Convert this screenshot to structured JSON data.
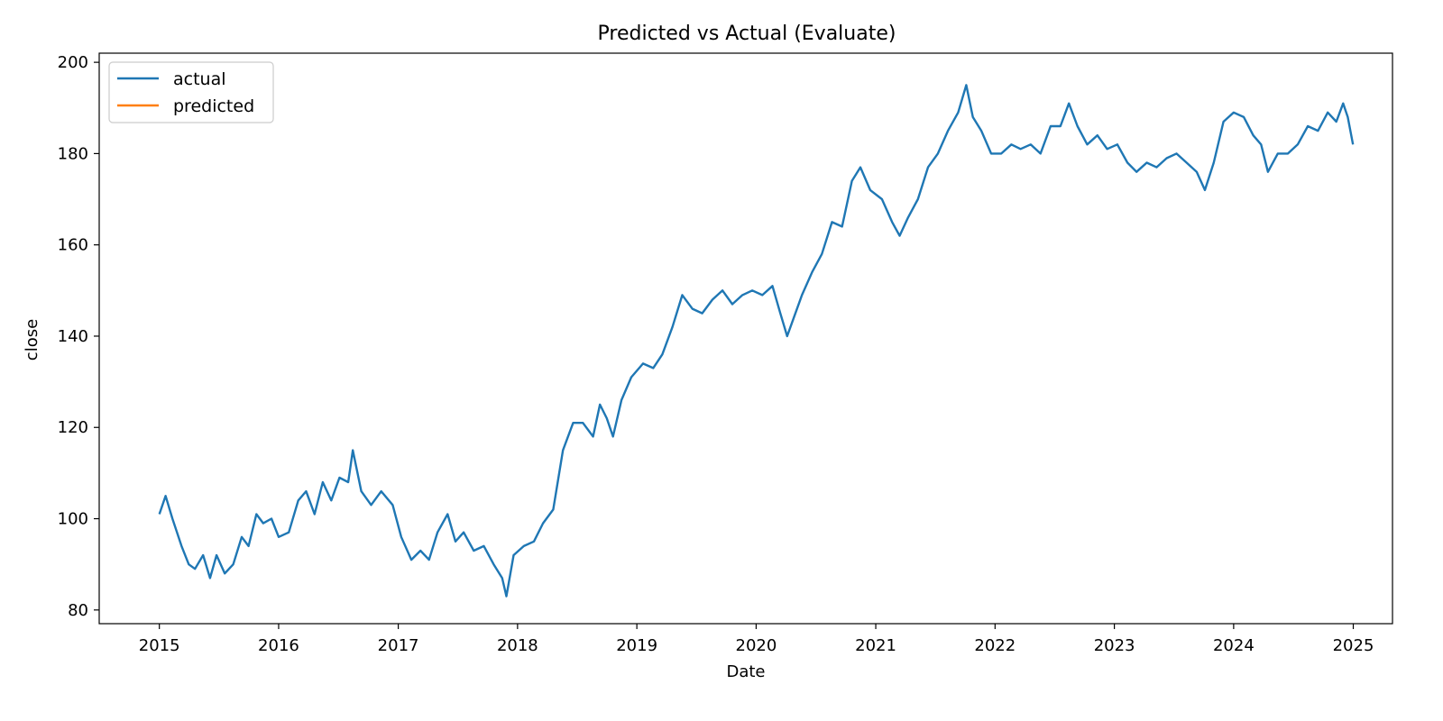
{
  "chart_data": {
    "type": "line",
    "title": "Predicted vs Actual (Evaluate)",
    "xlabel": "Date",
    "ylabel": "close",
    "xlim": [
      "2014-07-01",
      "2025-05-01"
    ],
    "ylim": [
      77,
      202
    ],
    "x_ticks": [
      "2015",
      "2016",
      "2017",
      "2018",
      "2019",
      "2020",
      "2021",
      "2022",
      "2023",
      "2024",
      "2025"
    ],
    "y_ticks": [
      80,
      100,
      120,
      140,
      160,
      180,
      200
    ],
    "grid": false,
    "legend_position": "top-left",
    "series": [
      {
        "name": "actual",
        "color": "#1f77b4",
        "points": [
          [
            "2015-01-01",
            101
          ],
          [
            "2015-01-20",
            105
          ],
          [
            "2015-02-10",
            100
          ],
          [
            "2015-03-10",
            94
          ],
          [
            "2015-04-01",
            90
          ],
          [
            "2015-04-20",
            89
          ],
          [
            "2015-05-15",
            92
          ],
          [
            "2015-06-05",
            87
          ],
          [
            "2015-06-25",
            92
          ],
          [
            "2015-07-20",
            88
          ],
          [
            "2015-08-15",
            90
          ],
          [
            "2015-09-10",
            96
          ],
          [
            "2015-10-01",
            94
          ],
          [
            "2015-10-25",
            101
          ],
          [
            "2015-11-15",
            99
          ],
          [
            "2015-12-10",
            100
          ],
          [
            "2016-01-01",
            96
          ],
          [
            "2016-02-01",
            97
          ],
          [
            "2016-03-01",
            104
          ],
          [
            "2016-03-25",
            106
          ],
          [
            "2016-04-20",
            101
          ],
          [
            "2016-05-15",
            108
          ],
          [
            "2016-06-10",
            104
          ],
          [
            "2016-07-05",
            109
          ],
          [
            "2016-08-01",
            108
          ],
          [
            "2016-08-15",
            115
          ],
          [
            "2016-09-10",
            106
          ],
          [
            "2016-10-10",
            103
          ],
          [
            "2016-11-10",
            106
          ],
          [
            "2016-12-15",
            103
          ],
          [
            "2017-01-10",
            96
          ],
          [
            "2017-02-10",
            91
          ],
          [
            "2017-03-10",
            93
          ],
          [
            "2017-04-05",
            91
          ],
          [
            "2017-05-01",
            97
          ],
          [
            "2017-06-01",
            101
          ],
          [
            "2017-06-25",
            95
          ],
          [
            "2017-07-20",
            97
          ],
          [
            "2017-08-20",
            93
          ],
          [
            "2017-09-20",
            94
          ],
          [
            "2017-10-20",
            90
          ],
          [
            "2017-11-15",
            87
          ],
          [
            "2017-11-28",
            83
          ],
          [
            "2017-12-20",
            92
          ],
          [
            "2018-01-20",
            94
          ],
          [
            "2018-02-20",
            95
          ],
          [
            "2018-03-20",
            99
          ],
          [
            "2018-04-20",
            102
          ],
          [
            "2018-05-20",
            115
          ],
          [
            "2018-06-20",
            121
          ],
          [
            "2018-07-20",
            121
          ],
          [
            "2018-08-20",
            118
          ],
          [
            "2018-09-10",
            125
          ],
          [
            "2018-10-01",
            122
          ],
          [
            "2018-10-20",
            118
          ],
          [
            "2018-11-15",
            126
          ],
          [
            "2018-12-15",
            131
          ],
          [
            "2019-01-20",
            134
          ],
          [
            "2019-02-20",
            133
          ],
          [
            "2019-03-20",
            136
          ],
          [
            "2019-04-20",
            142
          ],
          [
            "2019-05-20",
            149
          ],
          [
            "2019-06-20",
            146
          ],
          [
            "2019-07-20",
            145
          ],
          [
            "2019-08-20",
            148
          ],
          [
            "2019-09-20",
            150
          ],
          [
            "2019-10-20",
            147
          ],
          [
            "2019-11-20",
            149
          ],
          [
            "2019-12-20",
            150
          ],
          [
            "2020-01-20",
            149
          ],
          [
            "2020-02-20",
            151
          ],
          [
            "2020-03-15",
            145
          ],
          [
            "2020-04-05",
            140
          ],
          [
            "2020-04-25",
            144
          ],
          [
            "2020-05-20",
            149
          ],
          [
            "2020-06-20",
            154
          ],
          [
            "2020-07-20",
            158
          ],
          [
            "2020-08-20",
            165
          ],
          [
            "2020-09-20",
            164
          ],
          [
            "2020-10-20",
            174
          ],
          [
            "2020-11-15",
            177
          ],
          [
            "2020-12-15",
            172
          ],
          [
            "2021-01-20",
            170
          ],
          [
            "2021-02-20",
            165
          ],
          [
            "2021-03-15",
            162
          ],
          [
            "2021-04-10",
            166
          ],
          [
            "2021-05-10",
            170
          ],
          [
            "2021-06-10",
            177
          ],
          [
            "2021-07-10",
            180
          ],
          [
            "2021-08-10",
            185
          ],
          [
            "2021-09-10",
            189
          ],
          [
            "2021-10-05",
            195
          ],
          [
            "2021-10-25",
            188
          ],
          [
            "2021-11-20",
            185
          ],
          [
            "2021-12-20",
            180
          ],
          [
            "2022-01-20",
            180
          ],
          [
            "2022-02-20",
            182
          ],
          [
            "2022-03-20",
            181
          ],
          [
            "2022-04-20",
            182
          ],
          [
            "2022-05-20",
            180
          ],
          [
            "2022-06-20",
            186
          ],
          [
            "2022-07-20",
            186
          ],
          [
            "2022-08-15",
            191
          ],
          [
            "2022-09-10",
            186
          ],
          [
            "2022-10-10",
            182
          ],
          [
            "2022-11-10",
            184
          ],
          [
            "2022-12-10",
            181
          ],
          [
            "2023-01-10",
            182
          ],
          [
            "2023-02-10",
            178
          ],
          [
            "2023-03-10",
            176
          ],
          [
            "2023-04-10",
            178
          ],
          [
            "2023-05-10",
            177
          ],
          [
            "2023-06-10",
            179
          ],
          [
            "2023-07-10",
            180
          ],
          [
            "2023-08-10",
            178
          ],
          [
            "2023-09-10",
            176
          ],
          [
            "2023-10-05",
            172
          ],
          [
            "2023-11-01",
            178
          ],
          [
            "2023-12-01",
            187
          ],
          [
            "2024-01-01",
            189
          ],
          [
            "2024-02-01",
            188
          ],
          [
            "2024-03-01",
            184
          ],
          [
            "2024-03-25",
            182
          ],
          [
            "2024-04-15",
            176
          ],
          [
            "2024-05-15",
            180
          ],
          [
            "2024-06-15",
            180
          ],
          [
            "2024-07-15",
            182
          ],
          [
            "2024-08-15",
            186
          ],
          [
            "2024-09-15",
            185
          ],
          [
            "2024-10-15",
            189
          ],
          [
            "2024-11-10",
            187
          ],
          [
            "2024-12-01",
            191
          ],
          [
            "2024-12-15",
            188
          ],
          [
            "2024-12-31",
            182
          ]
        ]
      },
      {
        "name": "predicted",
        "color": "#ff7f0e",
        "points": []
      }
    ]
  }
}
